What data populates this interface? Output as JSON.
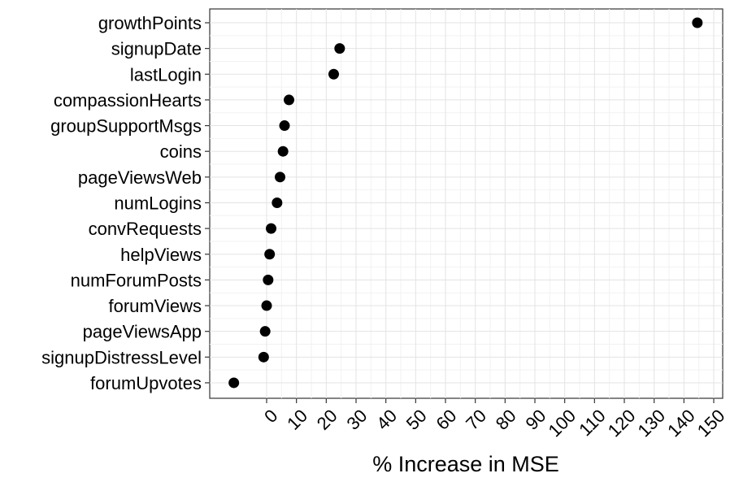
{
  "chart_data": {
    "type": "scatter",
    "title": "",
    "xlabel": "% Increase in MSE",
    "ylabel": "",
    "xlim": [
      -12,
      152
    ],
    "x_ticks": [
      0,
      10,
      20,
      30,
      40,
      50,
      60,
      70,
      80,
      90,
      100,
      110,
      120,
      130,
      140,
      150
    ],
    "grid": true,
    "legend": "none",
    "point_color": "#000000",
    "categories": [
      "growthPoints",
      "signupDate",
      "lastLogin",
      "compassionHearts",
      "groupSupportMsgs",
      "coins",
      "pageViewsWeb",
      "numLogins",
      "convRequests",
      "helpViews",
      "numForumPosts",
      "forumViews",
      "pageViewsApp",
      "signupDistressLevel",
      "forumUpvotes"
    ],
    "values": [
      144.5,
      24.5,
      22.5,
      7.5,
      6,
      5.5,
      4.5,
      3.5,
      1.5,
      1,
      0.5,
      0,
      -0.5,
      -1,
      -11
    ]
  }
}
